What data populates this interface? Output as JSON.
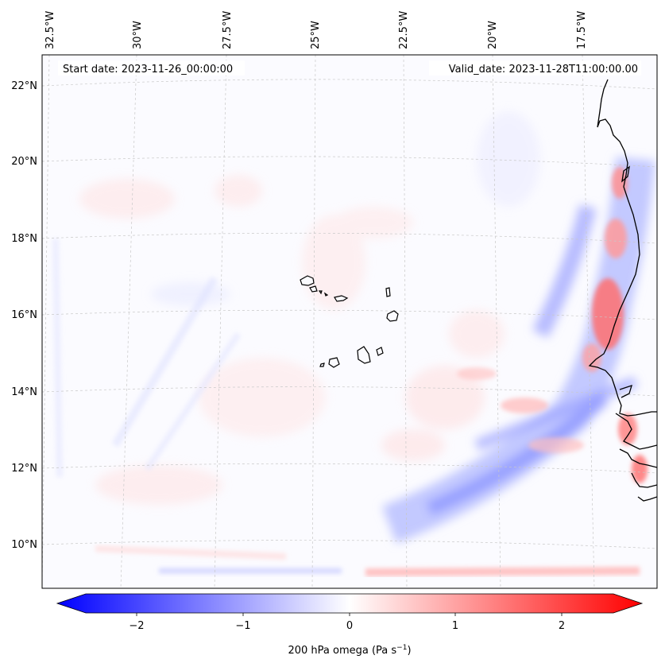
{
  "map": {
    "header_left": "Start date: 2023-11-26_00:00:00",
    "header_right": "Valid_date: 2023-11-28T11:00:00.00",
    "lon_labels": [
      "32.5°W",
      "30°W",
      "27.5°W",
      "25°W",
      "22.5°W",
      "20°W",
      "17.5°W"
    ],
    "lat_labels": [
      "22°N",
      "20°N",
      "18°N",
      "16°N",
      "14°N",
      "12°N",
      "10°N"
    ],
    "colorbar": {
      "label_main": "200 hPa omega (Pa s",
      "label_exp": "−1",
      "label_close": ")",
      "ticks": [
        "−2",
        "−1",
        "0",
        "1",
        "2"
      ],
      "colors": {
        "negative": "#0000ff",
        "neutral": "#ffffff",
        "positive": "#ff0000"
      }
    },
    "colors": {
      "coastline": "#000000",
      "gridline": "#c8c8c8",
      "background": "#fbfbff"
    }
  }
}
